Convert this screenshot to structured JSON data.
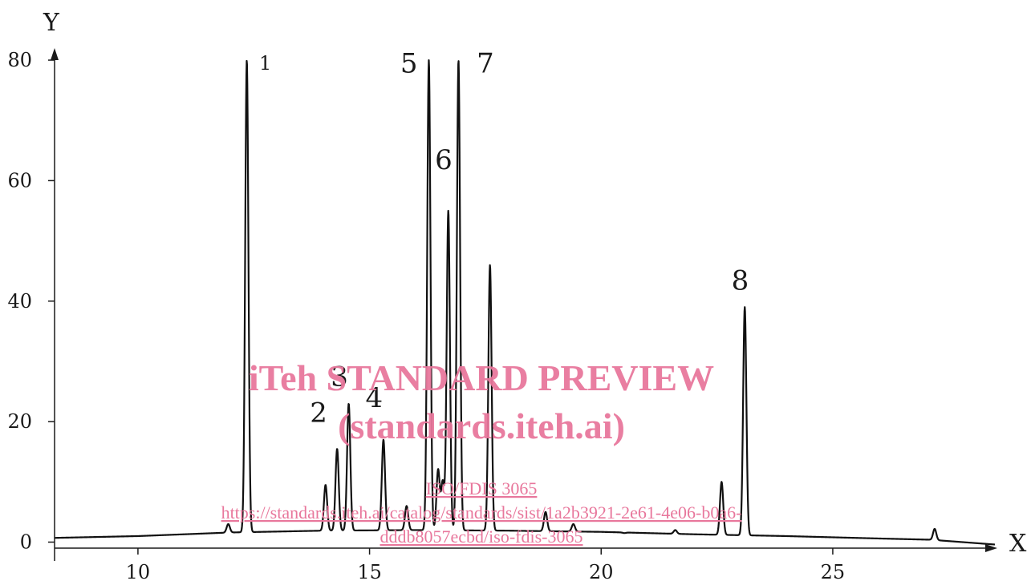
{
  "chart_data": {
    "type": "line",
    "xlabel": "X",
    "ylabel": "Y",
    "xlim": [
      8.2,
      28.5
    ],
    "ylim": [
      -1,
      82
    ],
    "x_ticks": [
      10,
      15,
      20,
      25
    ],
    "y_ticks": [
      0,
      20,
      40,
      60,
      80
    ],
    "grid": false,
    "series": [
      {
        "baseline": [
          [
            8.2,
            0.7
          ],
          [
            10,
            1.0
          ],
          [
            12,
            1.6
          ],
          [
            14,
            1.9
          ],
          [
            16,
            2.0
          ],
          [
            18,
            1.9
          ],
          [
            20,
            1.7
          ],
          [
            22,
            1.3
          ],
          [
            24,
            1.0
          ],
          [
            26,
            0.6
          ],
          [
            27.1,
            0.4
          ],
          [
            28.5,
            -0.4
          ]
        ],
        "peaks": [
          {
            "x": 11.95,
            "y": 3
          },
          {
            "x": 12.35,
            "y": 80
          },
          {
            "x": 14.05,
            "y": 9.5
          },
          {
            "x": 14.3,
            "y": 15.5
          },
          {
            "x": 14.55,
            "y": 23
          },
          {
            "x": 15.3,
            "y": 17
          },
          {
            "x": 15.8,
            "y": 6
          },
          {
            "x": 16.28,
            "y": 80
          },
          {
            "x": 16.48,
            "y": 12
          },
          {
            "x": 16.58,
            "y": 10
          },
          {
            "x": 16.7,
            "y": 55
          },
          {
            "x": 16.92,
            "y": 80
          },
          {
            "x": 17.6,
            "y": 46
          },
          {
            "x": 18.8,
            "y": 5
          },
          {
            "x": 19.4,
            "y": 3
          },
          {
            "x": 20.5,
            "y": 1.5
          },
          {
            "x": 21.6,
            "y": 2
          },
          {
            "x": 22.6,
            "y": 10
          },
          {
            "x": 23.1,
            "y": 39
          },
          {
            "x": 27.2,
            "y": 2.2
          }
        ]
      }
    ],
    "annotations": [
      {
        "text": "1",
        "x": 12.75,
        "y": 79.5
      },
      {
        "text": "2",
        "x": 13.9,
        "y": 21.5
      },
      {
        "text": "3",
        "x": 14.35,
        "y": 27.5
      },
      {
        "text": "4",
        "x": 15.1,
        "y": 24
      },
      {
        "text": "5",
        "x": 15.85,
        "y": 79.5
      },
      {
        "text": "6",
        "x": 16.6,
        "y": 63.5
      },
      {
        "text": "7",
        "x": 17.5,
        "y": 79.5
      },
      {
        "text": "8",
        "x": 23.0,
        "y": 43.5
      }
    ]
  },
  "watermark": {
    "title": "iTeh STANDARD PREVIEW",
    "subtitle": "(standards.iteh.ai)",
    "doc_id": "ISO/FDIS 3065",
    "url_line1": "https://standards.iteh.ai/catalog/standards/sist/1a2b3921-2e61-4e06-b0a6-",
    "url_line2": "dddb8057ecbd/iso-fdis-3065",
    "color": "#e8779c"
  }
}
